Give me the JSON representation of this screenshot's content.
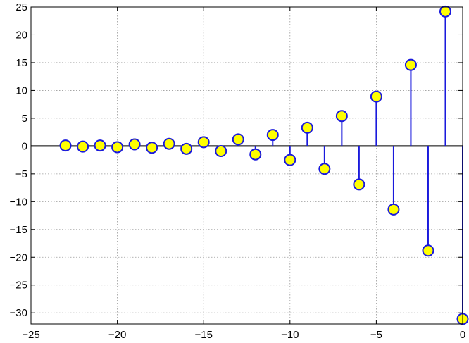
{
  "chart_data": {
    "type": "stem",
    "x": [
      -23,
      -22,
      -21,
      -20,
      -19,
      -18,
      -17,
      -16,
      -15,
      -14,
      -13,
      -12,
      -11,
      -10,
      -9,
      -8,
      -7,
      -6,
      -5,
      -4,
      -3,
      -2,
      -1,
      0
    ],
    "values": [
      0.1,
      -0.1,
      0.1,
      -0.2,
      0.3,
      -0.3,
      0.4,
      -0.5,
      0.7,
      -0.9,
      1.2,
      -1.5,
      2.0,
      -2.5,
      3.3,
      -4.1,
      5.4,
      -6.9,
      8.9,
      -11.4,
      14.6,
      -18.8,
      24.2,
      -31.1
    ],
    "xlim": [
      -25,
      0
    ],
    "ylim": [
      -32,
      25
    ],
    "xticks": [
      -25,
      -20,
      -15,
      -10,
      -5,
      0
    ],
    "yticks": [
      -30,
      -25,
      -20,
      -15,
      -10,
      -5,
      0,
      5,
      10,
      15,
      20,
      25
    ],
    "xtick_labels": [
      "−25",
      "−20",
      "−15",
      "−10",
      "−5",
      "0"
    ],
    "ytick_labels": [
      "−30",
      "−25",
      "−20",
      "−15",
      "−10",
      "−5",
      "0",
      "5",
      "10",
      "15",
      "20",
      "25"
    ],
    "grid": true,
    "stem_color": "#1a1adc",
    "marker_fill": "#ffff00",
    "baseline_color": "#000000"
  }
}
